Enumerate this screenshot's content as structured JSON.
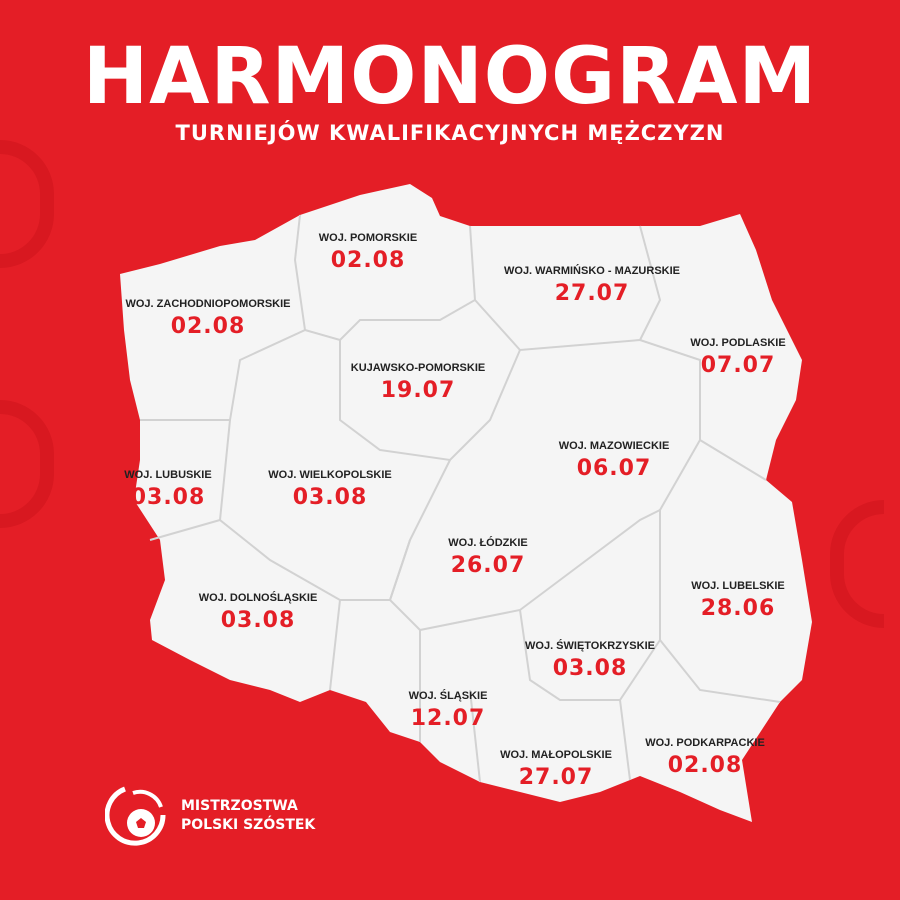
{
  "header": {
    "title": "HARMONOGRAM",
    "subtitle": "TURNIEJÓW KWALIFIKACYJNYCH MĘŻCZYZN"
  },
  "colors": {
    "background": "#e41e26",
    "map": "#f5f5f5",
    "date": "#e41e26",
    "label": "#222222"
  },
  "regions": [
    {
      "name": "WOJ. POMORSKIE",
      "date": "02.08"
    },
    {
      "name": "WOJ. ZACHODNIOPOMORSKIE",
      "date": "02.08"
    },
    {
      "name": "WOJ. WARMIŃSKO - MAZURSKIE",
      "date": "27.07"
    },
    {
      "name": "KUJAWSKO-POMORSKIE",
      "date": "19.07"
    },
    {
      "name": "WOJ. PODLASKIE",
      "date": "07.07"
    },
    {
      "name": "WOJ. MAZOWIECKIE",
      "date": "06.07"
    },
    {
      "name": "WOJ. LUBUSKIE",
      "date": "03.08"
    },
    {
      "name": "WOJ. WIELKOPOLSKIE",
      "date": "03.08"
    },
    {
      "name": "WOJ. ŁÓDZKIE",
      "date": "26.07"
    },
    {
      "name": "WOJ. DOLNOŚLĄSKIE",
      "date": "03.08"
    },
    {
      "name": "WOJ. LUBELSKIE",
      "date": "28.06"
    },
    {
      "name": "WOJ. ŚWIĘTOKRZYSKIE",
      "date": "03.08"
    },
    {
      "name": "WOJ. ŚLĄSKIE",
      "date": "12.07"
    },
    {
      "name": "WOJ. MAŁOPOLSKIE",
      "date": "27.07"
    },
    {
      "name": "WOJ. PODKARPACKIE",
      "date": "02.08"
    }
  ],
  "logo": {
    "line1": "MISTRZOSTWA",
    "line2": "POLSKI SZÓSTEK",
    "icon": "soccer-ball-swirl-icon"
  }
}
